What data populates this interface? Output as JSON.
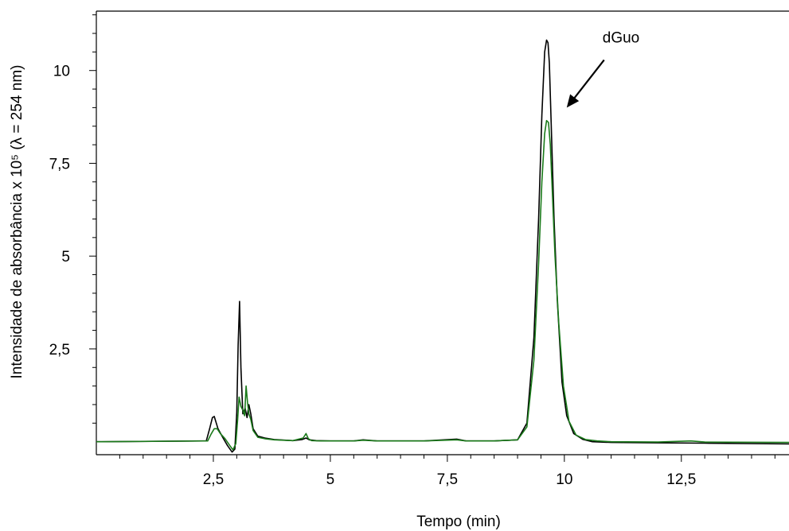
{
  "chart_data": {
    "type": "line",
    "xlabel": "Tempo (min)",
    "ylabel": "Intensidade de absorbância x 10⁵ (λ = 254 nm)",
    "xlim": [
      0,
      14.8
    ],
    "ylim": [
      -0.35,
      11.6
    ],
    "x_ticks": [
      2.5,
      5,
      7.5,
      10,
      12.5
    ],
    "x_tick_labels": [
      "2,5",
      "5",
      "7,5",
      "10",
      "12,5"
    ],
    "y_ticks": [
      2.5,
      5,
      7.5,
      10
    ],
    "y_tick_labels": [
      "2,5",
      "5",
      "7,5",
      "10"
    ],
    "grid": false,
    "colors": {
      "series_black": "#000000",
      "series_green": "#1a7a1a",
      "axis": "#000000"
    },
    "annotation": {
      "text": "dGuo",
      "arrow_to": [
        10.05,
        9.0
      ]
    },
    "series": [
      {
        "color": "#000000",
        "x": [
          0,
          2.35,
          2.42,
          2.48,
          2.52,
          2.6,
          2.7,
          2.8,
          2.9,
          2.96,
          3.0,
          3.03,
          3.06,
          3.09,
          3.13,
          3.18,
          3.22,
          3.26,
          3.3,
          3.35,
          3.45,
          3.6,
          3.8,
          4.2,
          4.4,
          4.48,
          4.55,
          4.7,
          5.0,
          5.5,
          5.7,
          6.0,
          7.0,
          7.7,
          7.9,
          8.5,
          9.0,
          9.2,
          9.35,
          9.45,
          9.52,
          9.58,
          9.62,
          9.65,
          9.68,
          9.72,
          9.78,
          9.85,
          9.95,
          10.05,
          10.2,
          10.4,
          10.6,
          11.0,
          12.0,
          13.0,
          14.8
        ],
        "y": [
          0.0,
          0.02,
          0.35,
          0.65,
          0.68,
          0.35,
          0.12,
          -0.1,
          -0.28,
          -0.2,
          0.8,
          2.6,
          3.78,
          2.0,
          0.75,
          0.9,
          0.65,
          1.0,
          0.75,
          0.35,
          0.15,
          0.1,
          0.06,
          0.03,
          0.06,
          0.1,
          0.05,
          0.03,
          0.02,
          0.02,
          0.05,
          0.02,
          0.02,
          0.07,
          0.02,
          0.02,
          0.05,
          0.5,
          2.8,
          6.0,
          8.8,
          10.5,
          10.82,
          10.75,
          10.2,
          8.5,
          6.0,
          3.8,
          1.6,
          0.7,
          0.22,
          0.06,
          0.0,
          -0.02,
          -0.03,
          -0.04,
          -0.06
        ]
      },
      {
        "color": "#1a7a1a",
        "x": [
          0,
          2.38,
          2.45,
          2.52,
          2.58,
          2.65,
          2.75,
          2.85,
          2.92,
          2.98,
          3.02,
          3.05,
          3.09,
          3.13,
          3.17,
          3.2,
          3.23,
          3.26,
          3.3,
          3.35,
          3.45,
          3.6,
          3.8,
          4.2,
          4.42,
          4.48,
          4.53,
          4.6,
          4.8,
          5.5,
          5.7,
          6.0,
          7.0,
          7.7,
          7.9,
          8.5,
          9.0,
          9.2,
          9.35,
          9.45,
          9.52,
          9.58,
          9.62,
          9.66,
          9.7,
          9.74,
          9.8,
          9.88,
          9.98,
          10.1,
          10.25,
          10.45,
          10.7,
          11.0,
          12.0,
          12.7,
          13.0,
          14.8
        ],
        "y": [
          0.0,
          0.02,
          0.2,
          0.35,
          0.35,
          0.22,
          0.08,
          -0.1,
          -0.22,
          -0.05,
          0.6,
          1.2,
          0.95,
          0.85,
          0.7,
          1.5,
          1.05,
          0.75,
          0.6,
          0.3,
          0.12,
          0.08,
          0.05,
          0.03,
          0.1,
          0.22,
          0.08,
          0.03,
          0.02,
          0.02,
          0.04,
          0.02,
          0.02,
          0.05,
          0.02,
          0.02,
          0.05,
          0.4,
          2.2,
          4.8,
          7.0,
          8.3,
          8.65,
          8.6,
          8.0,
          6.8,
          5.0,
          3.2,
          1.5,
          0.55,
          0.18,
          0.06,
          0.02,
          0.0,
          -0.01,
          0.02,
          -0.01,
          -0.02
        ]
      }
    ]
  }
}
